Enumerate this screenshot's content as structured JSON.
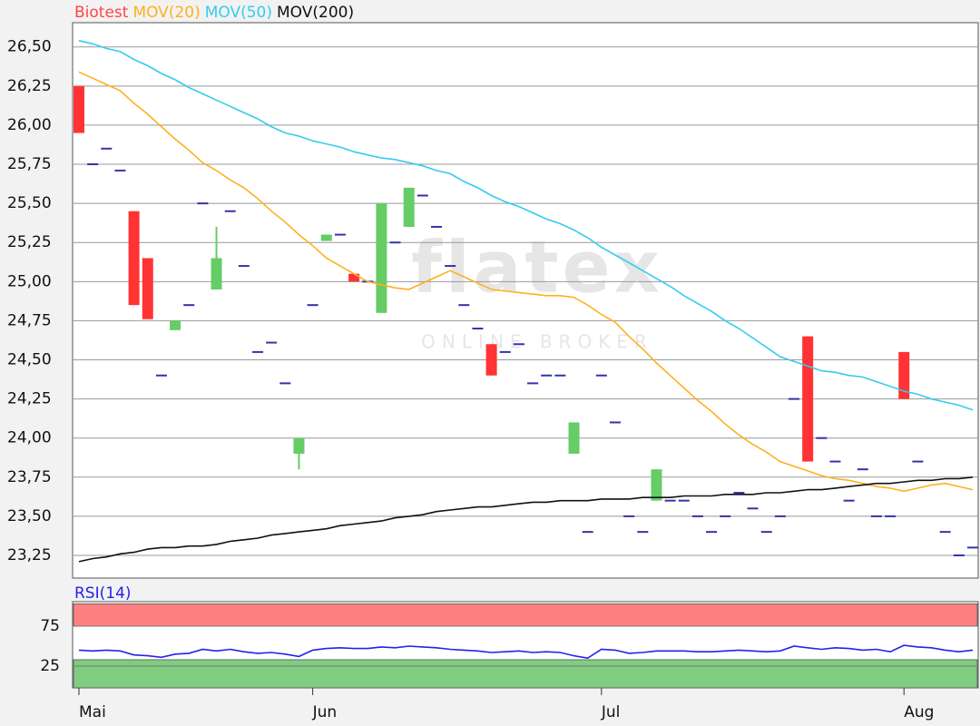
{
  "chart_data": {
    "type": "candlestick",
    "name": "Biotest",
    "name_color": "#ff4444",
    "up_color": "#66cc66",
    "down_color": "#ff3333",
    "flat_color": "#3333aa",
    "watermark": {
      "logo": "flatex",
      "tagline": "ONLINE BROKER"
    },
    "categories": [
      "Mai",
      null,
      null,
      null,
      null,
      null,
      null,
      null,
      null,
      null,
      null,
      null,
      null,
      null,
      null,
      null,
      null,
      "Jun",
      null,
      null,
      null,
      null,
      null,
      null,
      null,
      null,
      null,
      null,
      null,
      null,
      null,
      null,
      null,
      null,
      null,
      null,
      null,
      null,
      "Jul",
      null,
      null,
      null,
      null,
      null,
      null,
      null,
      null,
      null,
      null,
      null,
      null,
      null,
      null,
      null,
      null,
      null,
      null,
      null,
      null,
      null,
      "Aug",
      null,
      null,
      null,
      null,
      null
    ],
    "open": [
      26.25,
      25.75,
      25.85,
      25.71,
      25.45,
      25.15,
      24.4,
      24.69,
      24.85,
      25.5,
      24.95,
      25.45,
      25.1,
      24.55,
      24.61,
      24.35,
      23.9,
      24.85,
      25.26,
      25.3,
      25.05,
      25.0,
      24.8,
      25.25,
      25.35,
      25.55,
      25.35,
      25.1,
      24.85,
      24.7,
      24.6,
      24.55,
      24.6,
      24.35,
      24.4,
      24.4,
      23.9,
      23.4,
      24.4,
      24.1,
      23.5,
      23.4,
      23.6,
      23.6,
      23.6,
      23.5,
      23.4,
      23.5,
      23.65,
      23.55,
      23.4,
      23.5,
      24.25,
      24.65,
      24.0,
      23.85,
      23.6,
      23.8,
      23.5,
      23.5,
      24.55,
      23.85,
      null,
      23.4,
      23.25,
      23.3
    ],
    "close": [
      25.95,
      25.75,
      25.85,
      25.71,
      24.85,
      24.76,
      24.4,
      24.75,
      24.85,
      25.5,
      25.15,
      25.45,
      25.1,
      24.55,
      24.61,
      24.35,
      24.0,
      24.85,
      25.3,
      25.3,
      25.0,
      25.0,
      25.5,
      25.25,
      25.6,
      25.55,
      25.35,
      25.1,
      24.85,
      24.7,
      24.4,
      24.55,
      24.6,
      24.35,
      24.4,
      24.4,
      24.1,
      23.4,
      24.4,
      24.1,
      23.5,
      23.4,
      23.8,
      23.6,
      23.6,
      23.5,
      23.4,
      23.5,
      23.65,
      23.55,
      23.4,
      23.5,
      24.25,
      23.85,
      24.0,
      23.85,
      23.6,
      23.8,
      23.5,
      23.5,
      24.25,
      23.85,
      null,
      23.4,
      23.25,
      23.3
    ],
    "high": [
      26.25,
      25.75,
      25.85,
      25.71,
      25.45,
      25.15,
      24.4,
      24.75,
      24.85,
      25.5,
      25.35,
      25.45,
      25.1,
      24.55,
      24.61,
      24.35,
      24.0,
      24.85,
      25.3,
      25.3,
      25.05,
      25.0,
      25.5,
      25.25,
      25.6,
      25.55,
      25.35,
      25.1,
      24.85,
      24.7,
      24.6,
      24.55,
      24.6,
      24.35,
      24.4,
      24.4,
      24.1,
      23.4,
      24.4,
      24.1,
      23.5,
      23.4,
      23.8,
      23.6,
      23.6,
      23.5,
      23.4,
      23.5,
      23.65,
      23.55,
      23.4,
      23.5,
      24.25,
      24.65,
      24.0,
      23.85,
      23.6,
      23.8,
      23.5,
      23.5,
      24.55,
      23.85,
      null,
      23.4,
      23.25,
      23.3
    ],
    "low": [
      25.95,
      25.75,
      25.85,
      25.71,
      24.85,
      24.76,
      24.4,
      24.69,
      24.85,
      25.5,
      24.95,
      25.45,
      25.1,
      24.55,
      24.61,
      24.35,
      23.8,
      24.85,
      25.26,
      25.3,
      25.0,
      25.0,
      24.8,
      25.25,
      25.35,
      25.55,
      25.35,
      25.1,
      24.85,
      24.7,
      24.4,
      24.55,
      24.6,
      24.35,
      24.4,
      24.4,
      23.9,
      23.4,
      24.4,
      24.1,
      23.5,
      23.4,
      23.6,
      23.6,
      23.6,
      23.5,
      23.4,
      23.5,
      23.65,
      23.55,
      23.4,
      23.5,
      24.25,
      23.85,
      24.0,
      23.85,
      23.6,
      23.8,
      23.5,
      23.5,
      24.25,
      23.85,
      null,
      23.4,
      23.25,
      23.3
    ],
    "series": [
      {
        "name": "MOV(20)",
        "color": "#ffb01e",
        "values": [
          26.34,
          26.3,
          26.26,
          26.22,
          26.14,
          26.07,
          25.99,
          25.91,
          25.84,
          25.76,
          25.71,
          25.65,
          25.6,
          25.53,
          25.45,
          25.38,
          25.3,
          25.23,
          25.15,
          25.1,
          25.05,
          25.0,
          24.98,
          24.96,
          24.95,
          24.99,
          25.03,
          25.07,
          25.03,
          24.99,
          24.95,
          24.94,
          24.93,
          24.92,
          24.91,
          24.91,
          24.9,
          24.85,
          24.79,
          24.74,
          24.65,
          24.57,
          24.48,
          24.4,
          24.32,
          24.24,
          24.17,
          24.09,
          24.02,
          23.96,
          23.91,
          23.85,
          23.82,
          23.79,
          23.76,
          23.74,
          23.73,
          23.71,
          23.69,
          23.68,
          23.66,
          23.68,
          23.7,
          23.71,
          23.69,
          23.67
        ]
      },
      {
        "name": "MOV(50)",
        "color": "#33ccee",
        "values": [
          26.54,
          26.52,
          26.49,
          26.47,
          26.42,
          26.38,
          26.33,
          26.29,
          26.24,
          26.2,
          26.16,
          26.12,
          26.08,
          26.04,
          25.99,
          25.95,
          25.93,
          25.9,
          25.88,
          25.86,
          25.83,
          25.81,
          25.79,
          25.78,
          25.76,
          25.74,
          25.71,
          25.69,
          25.64,
          25.6,
          25.55,
          25.51,
          25.48,
          25.44,
          25.4,
          25.37,
          25.33,
          25.28,
          25.22,
          25.17,
          25.12,
          25.07,
          25.02,
          24.97,
          24.91,
          24.86,
          24.81,
          24.75,
          24.7,
          24.64,
          24.58,
          24.52,
          24.49,
          24.46,
          24.43,
          24.42,
          24.4,
          24.39,
          24.36,
          24.33,
          24.3,
          24.28,
          24.25,
          24.23,
          24.21,
          24.18
        ]
      },
      {
        "name": "MOV(200)",
        "color": "#111111",
        "values": [
          23.21,
          23.23,
          23.24,
          23.26,
          23.27,
          23.29,
          23.3,
          23.3,
          23.31,
          23.31,
          23.32,
          23.34,
          23.35,
          23.36,
          23.38,
          23.39,
          23.4,
          23.41,
          23.42,
          23.44,
          23.45,
          23.46,
          23.47,
          23.49,
          23.5,
          23.51,
          23.53,
          23.54,
          23.55,
          23.56,
          23.56,
          23.57,
          23.58,
          23.59,
          23.59,
          23.6,
          23.6,
          23.6,
          23.61,
          23.61,
          23.61,
          23.62,
          23.62,
          23.62,
          23.63,
          23.63,
          23.63,
          23.64,
          23.64,
          23.64,
          23.65,
          23.65,
          23.66,
          23.67,
          23.67,
          23.68,
          23.69,
          23.7,
          23.71,
          23.71,
          23.72,
          23.73,
          23.73,
          23.74,
          23.74,
          23.75
        ]
      }
    ],
    "ylim": [
      23.105,
      26.655
    ],
    "yticks": [
      {
        "value": 23.25,
        "label": "23,25"
      },
      {
        "value": 23.5,
        "label": "23,50"
      },
      {
        "value": 23.75,
        "label": "23,75"
      },
      {
        "value": 24,
        "label": "24,00"
      },
      {
        "value": 24.25,
        "label": "24,25"
      },
      {
        "value": 24.5,
        "label": "24,50"
      },
      {
        "value": 24.75,
        "label": "24,75"
      },
      {
        "value": 25,
        "label": "25,00"
      },
      {
        "value": 25.25,
        "label": "25,25"
      },
      {
        "value": 25.5,
        "label": "25,50"
      },
      {
        "value": 25.75,
        "label": "25,75"
      },
      {
        "value": 26,
        "label": "26,00"
      },
      {
        "value": 26.25,
        "label": "26,25"
      },
      {
        "value": 26.5,
        "label": "26,50"
      }
    ],
    "grid": true,
    "rsi": {
      "title": "RSI(14)",
      "color": "#2222ee",
      "values": [
        45,
        44,
        45,
        44,
        39,
        38,
        36,
        40,
        41,
        46,
        44,
        46,
        43,
        41,
        42,
        40,
        37,
        45,
        47,
        48,
        47,
        47,
        49,
        48,
        50,
        49,
        48,
        46,
        45,
        44,
        42,
        43,
        44,
        42,
        43,
        42,
        38,
        35,
        46,
        45,
        41,
        42,
        44,
        44,
        44,
        43,
        43,
        44,
        45,
        44,
        43,
        44,
        50,
        48,
        46,
        48,
        47,
        45,
        46,
        43,
        51,
        49,
        48,
        45,
        43,
        45
      ],
      "ylim": [
        -2.3,
        105.7
      ],
      "yticks": [
        25,
        75
      ],
      "bands": [
        {
          "from": 75,
          "to": 103,
          "color": "#ff8080"
        },
        {
          "from": -2.3,
          "to": 33,
          "color": "#80cc80"
        }
      ]
    }
  }
}
